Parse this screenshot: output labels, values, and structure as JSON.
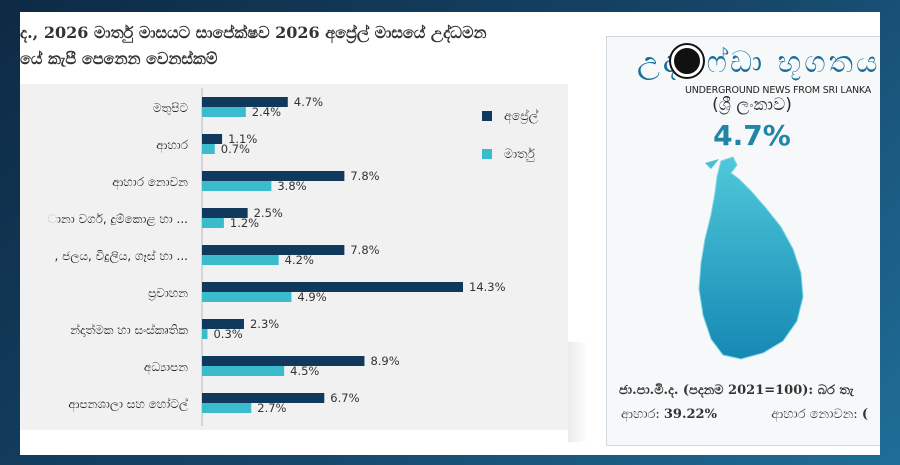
{
  "colors": {
    "april": "#10395d",
    "march": "#3bbccd",
    "accent": "#1f86a8"
  },
  "title_line1": "ද., 2026 මාර්තු මාසයට සාපේක්ෂව 2026 අප්‍රේල් මාසයේ උද්ධමන",
  "title_line2": "යේ කැපී පෙනෙන වෙනස්කම්",
  "chart_data": {
    "type": "bar",
    "orientation": "horizontal",
    "categories": [
      "මතුපිට",
      "ආහාර",
      "ආහාර නොවන",
      "ානා වර්ග, දුම්කොළ හා ...",
      ", ජලය, විදුලිය, ගෑස් හා ...",
      "ප්‍රවාහන",
      "න්දාත්මක හා සංස්කෘතික",
      "අධ්‍යාපන",
      "ආපනශාලා සහ හෝටල්"
    ],
    "series": [
      {
        "name": "අප්‍රේල්",
        "values": [
          4.7,
          1.1,
          7.8,
          2.5,
          7.8,
          14.3,
          2.3,
          8.9,
          6.7
        ]
      },
      {
        "name": "මාර්තු",
        "values": [
          2.4,
          0.7,
          3.8,
          1.2,
          4.2,
          4.9,
          0.3,
          4.5,
          2.7
        ]
      }
    ],
    "value_labels": [
      [
        "4.7%",
        "1.1%",
        "7.8%",
        "2.5%",
        "7.8%",
        "14.3%",
        "2.3%",
        "8.9%",
        "6.7%"
      ],
      [
        "2.4%",
        "0.7%",
        "3.8%",
        "1.2%",
        "4.2%",
        "4.9%",
        "0.3%",
        "4.5%",
        "2.7%"
      ]
    ],
    "xlim": [
      0,
      15
    ],
    "legend_position": "top-right",
    "grid": false
  },
  "panel": {
    "brand_text": "උද්‍ය ෆ්ඩා භූගතය",
    "brand_sub": "UNDERGROUND NEWS FROM SRI LANKA",
    "registered": "®",
    "country": "(ශ්‍රී ලංකාව)",
    "headline_value": "4.7%",
    "index_line": "ජා.පා.මි.ද. (පදනම 2021=100): බර තැ",
    "food_label": "ආහාර:",
    "food_value": "39.22%",
    "nonfood_label": "ආහාර නොවන:",
    "nonfood_value": "("
  }
}
